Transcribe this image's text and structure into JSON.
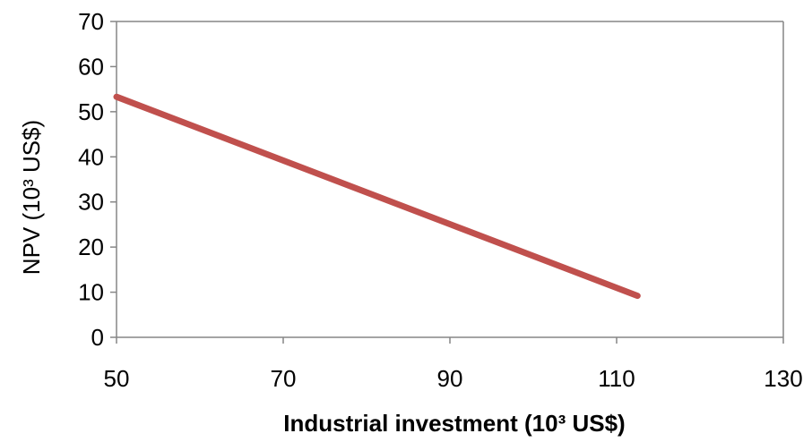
{
  "chart_data": {
    "type": "line",
    "title": "",
    "xlabel": "Industrial investment (10³ US$)",
    "ylabel": "NPV (10³ US$)",
    "xlim": [
      50,
      130
    ],
    "ylim": [
      0,
      70
    ],
    "x_ticks": [
      "50",
      "70",
      "90",
      "110",
      "130"
    ],
    "y_ticks": [
      "0",
      "10",
      "20",
      "30",
      "40",
      "50",
      "60",
      "70"
    ],
    "grid": false,
    "legend": "none",
    "series": [
      {
        "color": "#c0504d",
        "x": [
          50,
          112.5
        ],
        "y": [
          53.3,
          9.2
        ]
      }
    ]
  }
}
